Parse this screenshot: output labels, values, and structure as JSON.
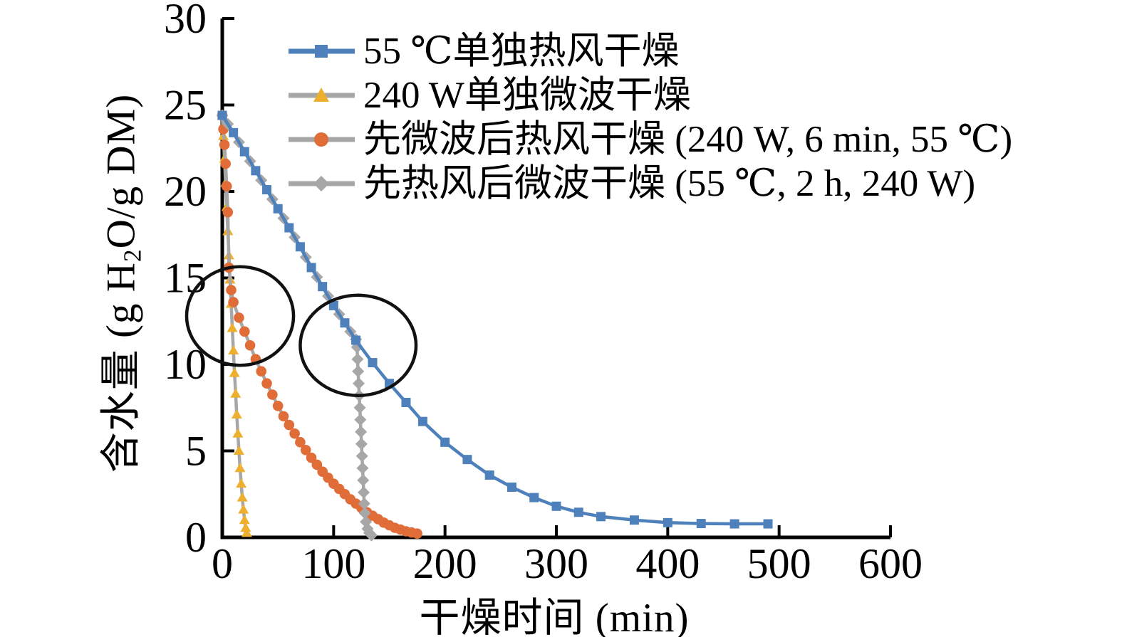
{
  "chart_data": {
    "type": "line",
    "title": "",
    "xlabel": "干燥时间 (min)",
    "ylabel": "含水量 (g H₂O/g DM)",
    "ylabel_parts": [
      "含水量 (g H",
      "2",
      "O/g DM)"
    ],
    "xlim": [
      0,
      600
    ],
    "ylim": [
      0,
      30
    ],
    "xticks": [
      0,
      100,
      200,
      300,
      400,
      500,
      600
    ],
    "yticks": [
      0,
      5,
      10,
      15,
      20,
      25,
      30
    ],
    "grid": false,
    "legend_position": "top-left-inside",
    "series": [
      {
        "id": "hot-air-55c-only",
        "name": "55 ℃单独热风干燥",
        "marker": "square",
        "marker_color": "#4e81bb",
        "line_color": "#4e81bb",
        "points": [
          [
            0,
            24.4
          ],
          [
            10,
            23.4
          ],
          [
            20,
            22.3
          ],
          [
            30,
            21.2
          ],
          [
            40,
            20.1
          ],
          [
            50,
            19.0
          ],
          [
            60,
            17.9
          ],
          [
            70,
            16.8
          ],
          [
            80,
            15.6
          ],
          [
            90,
            14.5
          ],
          [
            100,
            13.4
          ],
          [
            110,
            12.4
          ],
          [
            120,
            11.4
          ],
          [
            135,
            10.1
          ],
          [
            150,
            8.9
          ],
          [
            165,
            7.8
          ],
          [
            180,
            6.7
          ],
          [
            200,
            5.5
          ],
          [
            220,
            4.5
          ],
          [
            240,
            3.6
          ],
          [
            260,
            2.9
          ],
          [
            280,
            2.3
          ],
          [
            300,
            1.8
          ],
          [
            320,
            1.45
          ],
          [
            340,
            1.2
          ],
          [
            370,
            1.0
          ],
          [
            400,
            0.85
          ],
          [
            430,
            0.8
          ],
          [
            460,
            0.78
          ],
          [
            490,
            0.78
          ]
        ]
      },
      {
        "id": "microwave-240w-only",
        "name": "240 W单独微波干燥",
        "marker": "triangle",
        "marker_color": "#eeaf2e",
        "line_color": "#a7a7a7",
        "points": [
          [
            0,
            24.4
          ],
          [
            1,
            23.2
          ],
          [
            2,
            21.9
          ],
          [
            3,
            20.5
          ],
          [
            4,
            19.1
          ],
          [
            5,
            17.7
          ],
          [
            6,
            16.3
          ],
          [
            7,
            14.9
          ],
          [
            8,
            13.5
          ],
          [
            9,
            12.1
          ],
          [
            10,
            10.8
          ],
          [
            11,
            9.5
          ],
          [
            12,
            8.3
          ],
          [
            13,
            7.1
          ],
          [
            14,
            6.0
          ],
          [
            15,
            5.0
          ],
          [
            16,
            4.0
          ],
          [
            17,
            3.1
          ],
          [
            18,
            2.3
          ],
          [
            19,
            1.6
          ],
          [
            20,
            1.0
          ],
          [
            21,
            0.55
          ],
          [
            22,
            0.25
          ]
        ]
      },
      {
        "id": "microwave-then-hot-air",
        "name": "先微波后热风干燥 (240 W, 6 min, 55 ℃)",
        "marker": "circle",
        "marker_color": "#e06c38",
        "line_color": "#a7a7a7",
        "points": [
          [
            0,
            24.4
          ],
          [
            1,
            23.6
          ],
          [
            2,
            22.7
          ],
          [
            3,
            21.6
          ],
          [
            4,
            20.3
          ],
          [
            5,
            18.8
          ],
          [
            6,
            15.6
          ],
          [
            8,
            14.3
          ],
          [
            10,
            13.6
          ],
          [
            15,
            12.7
          ],
          [
            20,
            11.9
          ],
          [
            25,
            11.1
          ],
          [
            30,
            10.3
          ],
          [
            35,
            9.6
          ],
          [
            40,
            8.9
          ],
          [
            45,
            8.25
          ],
          [
            50,
            7.6
          ],
          [
            55,
            7.0
          ],
          [
            60,
            6.5
          ],
          [
            65,
            6.0
          ],
          [
            70,
            5.5
          ],
          [
            75,
            5.05
          ],
          [
            80,
            4.6
          ],
          [
            85,
            4.2
          ],
          [
            90,
            3.8
          ],
          [
            95,
            3.45
          ],
          [
            100,
            3.1
          ],
          [
            105,
            2.8
          ],
          [
            110,
            2.5
          ],
          [
            115,
            2.2
          ],
          [
            120,
            1.95
          ],
          [
            125,
            1.7
          ],
          [
            130,
            1.45
          ],
          [
            135,
            1.25
          ],
          [
            140,
            1.05
          ],
          [
            145,
            0.85
          ],
          [
            150,
            0.7
          ],
          [
            155,
            0.55
          ],
          [
            160,
            0.45
          ],
          [
            165,
            0.35
          ],
          [
            170,
            0.28
          ],
          [
            175,
            0.22
          ]
        ]
      },
      {
        "id": "hot-air-then-microwave",
        "name": "先热风后微波干燥 (55 ℃, 2 h, 240 W)",
        "marker": "diamond",
        "marker_color": "#a7a7a7",
        "line_color": "#a7a7a7",
        "points": [
          [
            0,
            24.4
          ],
          [
            5,
            23.9
          ],
          [
            15,
            22.85
          ],
          [
            25,
            21.75
          ],
          [
            35,
            20.65
          ],
          [
            45,
            19.55
          ],
          [
            55,
            18.45
          ],
          [
            65,
            17.35
          ],
          [
            75,
            16.2
          ],
          [
            85,
            15.05
          ],
          [
            95,
            13.95
          ],
          [
            105,
            12.9
          ],
          [
            115,
            11.9
          ],
          [
            120,
            11.45
          ],
          [
            121,
            11.0
          ],
          [
            121.5,
            10.3
          ],
          [
            122,
            9.6
          ],
          [
            122.5,
            8.9
          ],
          [
            123,
            8.2
          ],
          [
            123.5,
            7.5
          ],
          [
            124,
            6.8
          ],
          [
            124.5,
            6.1
          ],
          [
            125,
            5.4
          ],
          [
            125.5,
            4.7
          ],
          [
            126,
            4.0
          ],
          [
            126.5,
            3.3
          ],
          [
            127,
            2.6
          ],
          [
            127.5,
            1.95
          ],
          [
            128,
            1.4
          ],
          [
            129,
            0.9
          ],
          [
            130.5,
            0.5
          ],
          [
            132,
            0.25
          ],
          [
            134,
            0.12
          ]
        ]
      }
    ],
    "annotations": {
      "ellipses": [
        {
          "id": "circle-annotation-left",
          "cx_min": 16,
          "cy_val": 12.8,
          "rx_min": 48,
          "ry_val": 2.85
        },
        {
          "id": "circle-annotation-right",
          "cx_min": 122,
          "cy_val": 11.1,
          "rx_min": 52,
          "ry_val": 2.9
        }
      ]
    }
  },
  "colors": {
    "blue": "#4e81bb",
    "gold": "#eeaf2e",
    "orange": "#e06c38",
    "gray": "#a7a7a7",
    "axis": "#000000",
    "annotation": "#111111",
    "background": "#ffffff"
  }
}
